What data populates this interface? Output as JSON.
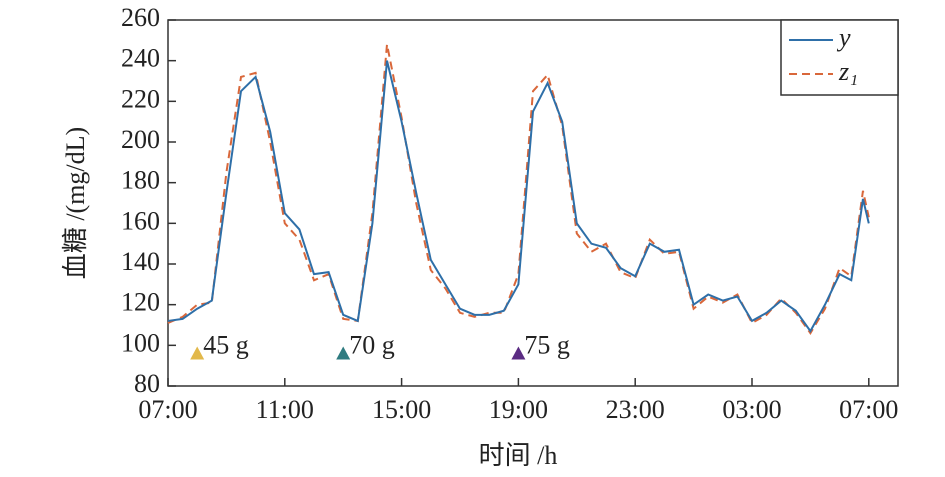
{
  "chart_data": {
    "type": "line",
    "xlabel": "时间 /h",
    "ylabel": "血糖 /(mg/dL)",
    "x": [
      0,
      0.5,
      1,
      1.5,
      2,
      2.5,
      3,
      3.5,
      4,
      4.5,
      5,
      5.5,
      6,
      6.5,
      7,
      7.5,
      8,
      8.5,
      9,
      9.5,
      10,
      10.5,
      11,
      11.5,
      12,
      12.5,
      13,
      13.5,
      14,
      14.5,
      15,
      15.5,
      16,
      16.5,
      17,
      17.5,
      18,
      18.5,
      19,
      19.5,
      20,
      20.5,
      21,
      21.5,
      22,
      22.5,
      23,
      23.4,
      23.8,
      24
    ],
    "series": [
      {
        "name": "y",
        "color": "#2e6fa8",
        "dash": false,
        "values": [
          112,
          113,
          118,
          122,
          175,
          225,
          232,
          205,
          165,
          157,
          135,
          136,
          115,
          112,
          160,
          240,
          210,
          175,
          142,
          130,
          118,
          115,
          115,
          117,
          130,
          215,
          229,
          210,
          160,
          150,
          148,
          138,
          134,
          150,
          146,
          147,
          120,
          125,
          122,
          124,
          112,
          116,
          122,
          117,
          107,
          120,
          135,
          132,
          172,
          160
        ]
      },
      {
        "name": "z₁",
        "color": "#d9673a",
        "dash": true,
        "values": [
          111,
          114,
          120,
          121,
          185,
          232,
          234,
          200,
          160,
          152,
          132,
          135,
          113,
          112,
          165,
          248,
          212,
          170,
          137,
          128,
          116,
          114,
          116,
          116,
          135,
          225,
          233,
          208,
          155,
          146,
          150,
          136,
          133,
          152,
          145,
          146,
          118,
          124,
          121,
          125,
          111,
          115,
          123,
          116,
          106,
          118,
          138,
          134,
          176,
          163
        ]
      }
    ],
    "annotations": [
      {
        "x": 1,
        "y": 96,
        "label": "45 g",
        "color": "#e2b84a"
      },
      {
        "x": 6,
        "y": 96,
        "label": "70 g",
        "color": "#2f7b80"
      },
      {
        "x": 12,
        "y": 96,
        "label": "75 g",
        "color": "#5b2c83"
      }
    ],
    "xlim": [
      0,
      25
    ],
    "xticks": [
      {
        "value": 0,
        "label": "07:00"
      },
      {
        "value": 4,
        "label": "11:00"
      },
      {
        "value": 8,
        "label": "15:00"
      },
      {
        "value": 12,
        "label": "19:00"
      },
      {
        "value": 16,
        "label": "23:00"
      },
      {
        "value": 20,
        "label": "03:00"
      },
      {
        "value": 24,
        "label": "07:00"
      }
    ],
    "ylim": [
      80,
      260
    ],
    "yticks": [
      80,
      100,
      120,
      140,
      160,
      180,
      200,
      220,
      240,
      260
    ],
    "legend": "upper right",
    "grid": false
  }
}
